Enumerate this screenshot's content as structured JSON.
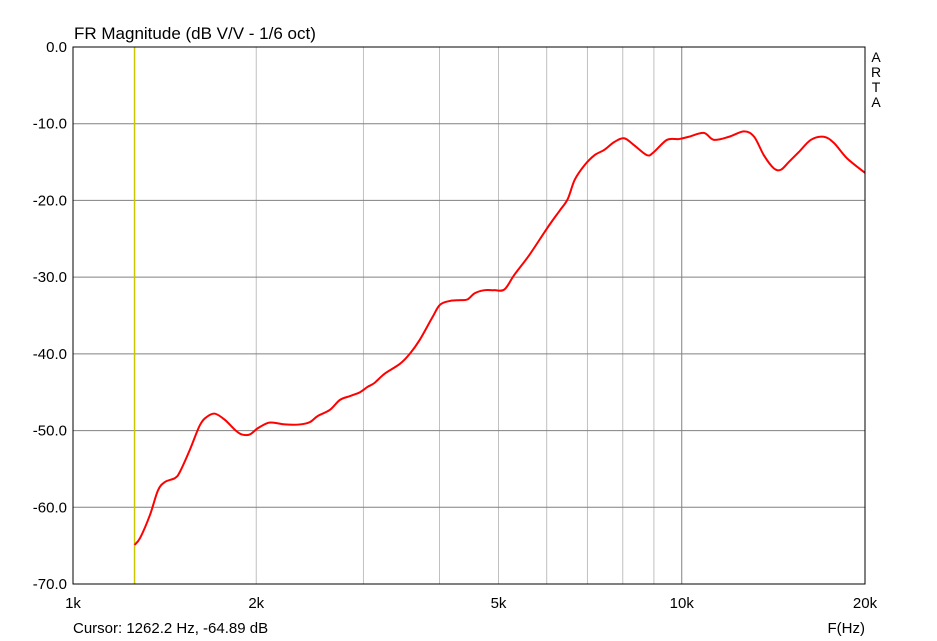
{
  "chart_data": {
    "type": "line",
    "title": "FR Magnitude (dB V/V - 1/6 oct)",
    "xlabel": "F(Hz)",
    "ylabel": "",
    "x_scale": "log",
    "xlim": [
      1000,
      20000
    ],
    "ylim": [
      -70,
      0
    ],
    "grid": true,
    "watermark": "ARTA",
    "x_ticks": [
      {
        "v": 1000,
        "label": "1k"
      },
      {
        "v": 2000,
        "label": "2k"
      },
      {
        "v": 5000,
        "label": "5k"
      },
      {
        "v": 10000,
        "label": "10k"
      },
      {
        "v": 20000,
        "label": "20k"
      }
    ],
    "x_minor_grid": [
      2000,
      3000,
      4000,
      5000,
      6000,
      7000,
      8000,
      9000
    ],
    "x_major_grid": [
      10000
    ],
    "y_ticks": [
      {
        "v": 0,
        "label": "0.0"
      },
      {
        "v": -10,
        "label": "-10.0"
      },
      {
        "v": -20,
        "label": "-20.0"
      },
      {
        "v": -30,
        "label": "-30.0"
      },
      {
        "v": -40,
        "label": "-40.0"
      },
      {
        "v": -50,
        "label": "-50.0"
      },
      {
        "v": -60,
        "label": "-60.0"
      },
      {
        "v": -70,
        "label": "-70.0"
      }
    ],
    "cursor": {
      "freq": 1262.2,
      "text": "Cursor: 1262.2 Hz, -64.89 dB",
      "color": "#c8c800"
    },
    "series": [
      {
        "color": "#ff0000",
        "x": [
          1262,
          1289,
          1338,
          1379,
          1416,
          1470,
          1498,
          1556,
          1616,
          1660,
          1711,
          1776,
          1845,
          1893,
          1952,
          2011,
          2090,
          2147,
          2229,
          2359,
          2449,
          2524,
          2643,
          2745,
          2851,
          2961,
          3048,
          3127,
          3249,
          3444,
          3574,
          3710,
          3890,
          4008,
          4163,
          4323,
          4448,
          4570,
          4743,
          4924,
          5114,
          5309,
          5620,
          5954,
          6135,
          6306,
          6498,
          6672,
          6925,
          7190,
          7463,
          7742,
          8040,
          8350,
          8768,
          8997,
          9459,
          9897,
          10270,
          10870,
          11290,
          11960,
          12660,
          13150,
          13640,
          14160,
          14550,
          14990,
          15570,
          16300,
          17110,
          17780,
          18680,
          20000
        ],
        "y": [
          -64.9,
          -64.0,
          -61.0,
          -57.8,
          -56.7,
          -56.2,
          -55.4,
          -52.5,
          -49.3,
          -48.2,
          -47.8,
          -48.6,
          -49.9,
          -50.5,
          -50.5,
          -49.7,
          -49.0,
          -49.0,
          -49.2,
          -49.2,
          -48.9,
          -48.1,
          -47.3,
          -46.0,
          -45.5,
          -45.0,
          -44.3,
          -43.8,
          -42.6,
          -41.3,
          -40.0,
          -38.2,
          -35.3,
          -33.6,
          -33.1,
          -33.0,
          -32.9,
          -32.1,
          -31.7,
          -31.7,
          -31.6,
          -29.7,
          -27.1,
          -24.1,
          -22.6,
          -21.3,
          -19.8,
          -17.3,
          -15.4,
          -14.1,
          -13.4,
          -12.4,
          -11.9,
          -12.8,
          -14.1,
          -13.7,
          -12.1,
          -12.0,
          -11.7,
          -11.2,
          -12.1,
          -11.7,
          -11.0,
          -11.7,
          -14.1,
          -15.8,
          -16.0,
          -15.0,
          -13.7,
          -12.1,
          -11.7,
          -12.5,
          -14.5,
          -16.4
        ]
      }
    ]
  }
}
